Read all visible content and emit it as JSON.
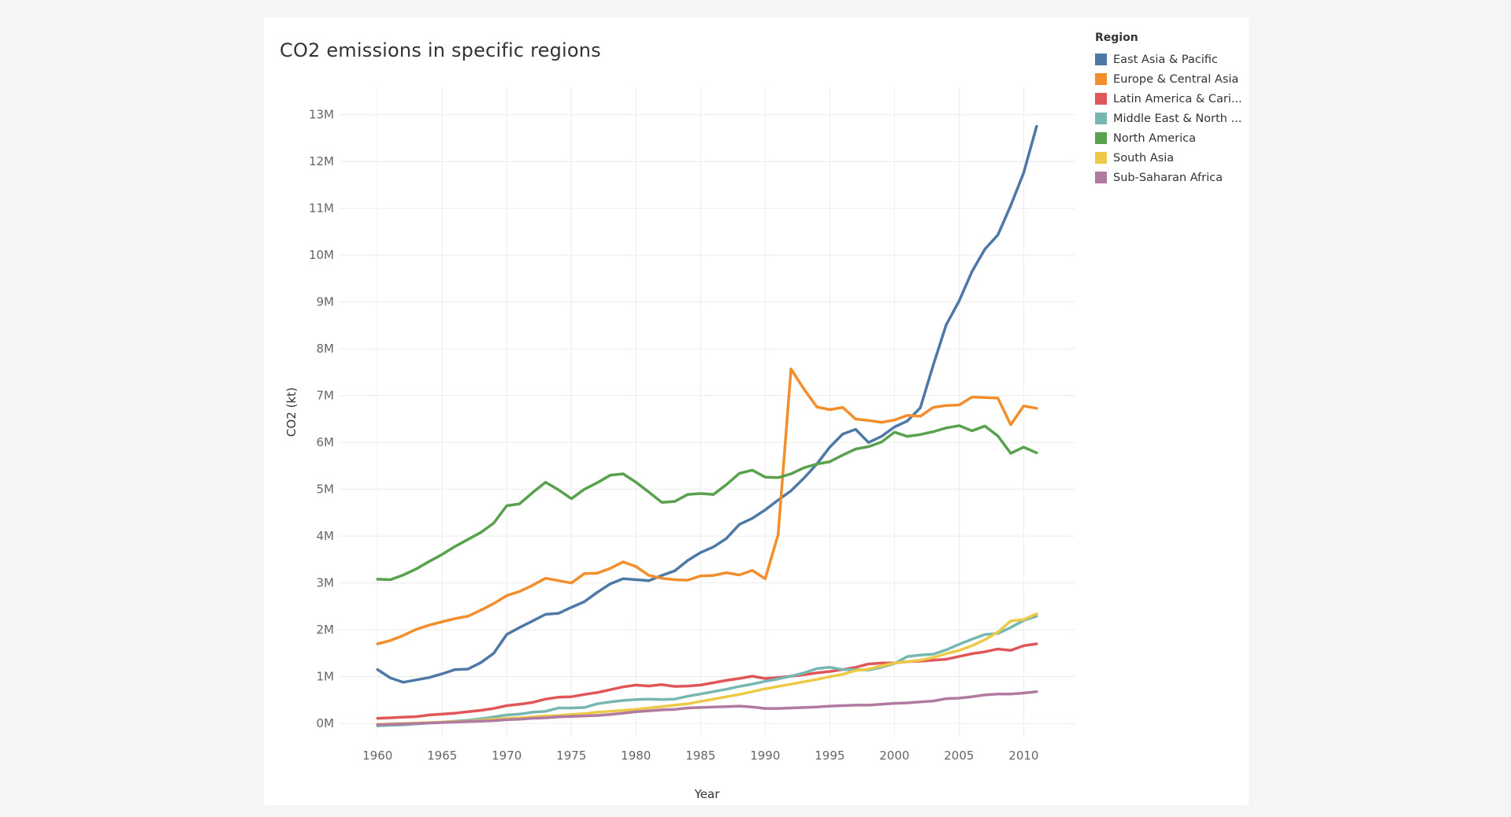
{
  "chart_data": {
    "type": "line",
    "title": "CO2 emissions in specific regions",
    "xlabel": "Year",
    "ylabel": "CO2 (kt)",
    "xlim": [
      1957,
      2014
    ],
    "ylim": [
      -300000,
      13600000
    ],
    "x_ticks": [
      1960,
      1965,
      1970,
      1975,
      1980,
      1985,
      1990,
      1995,
      2000,
      2005,
      2010
    ],
    "y_ticks": [
      {
        "value": 0,
        "label": "0M"
      },
      {
        "value": 1000000,
        "label": "1M"
      },
      {
        "value": 2000000,
        "label": "2M"
      },
      {
        "value": 3000000,
        "label": "3M"
      },
      {
        "value": 4000000,
        "label": "4M"
      },
      {
        "value": 5000000,
        "label": "5M"
      },
      {
        "value": 6000000,
        "label": "6M"
      },
      {
        "value": 7000000,
        "label": "7M"
      },
      {
        "value": 8000000,
        "label": "8M"
      },
      {
        "value": 9000000,
        "label": "9M"
      },
      {
        "value": 10000000,
        "label": "10M"
      },
      {
        "value": 11000000,
        "label": "11M"
      },
      {
        "value": 12000000,
        "label": "12M"
      },
      {
        "value": 13000000,
        "label": "13M"
      }
    ],
    "grid": true,
    "legend_title": "Region",
    "legend_position": "right",
    "x": [
      1960,
      1961,
      1962,
      1963,
      1964,
      1965,
      1966,
      1967,
      1968,
      1969,
      1970,
      1971,
      1972,
      1973,
      1974,
      1975,
      1976,
      1977,
      1978,
      1979,
      1980,
      1981,
      1982,
      1983,
      1984,
      1985,
      1986,
      1987,
      1988,
      1989,
      1990,
      1991,
      1992,
      1993,
      1994,
      1995,
      1996,
      1997,
      1998,
      1999,
      2000,
      2001,
      2002,
      2003,
      2004,
      2005,
      2006,
      2007,
      2008,
      2009,
      2010,
      2011
    ],
    "series": [
      {
        "name": "East Asia & Pacific",
        "label": "East Asia & Pacific",
        "color": "#4e79a7",
        "values": [
          1150000,
          970000,
          880000,
          930000,
          980000,
          1060000,
          1150000,
          1160000,
          1300000,
          1500000,
          1900000,
          2050000,
          2190000,
          2330000,
          2350000,
          2480000,
          2600000,
          2800000,
          2980000,
          3090000,
          3070000,
          3050000,
          3160000,
          3260000,
          3480000,
          3650000,
          3770000,
          3950000,
          4250000,
          4380000,
          4560000,
          4770000,
          4970000,
          5240000,
          5540000,
          5900000,
          6180000,
          6280000,
          6000000,
          6130000,
          6330000,
          6460000,
          6740000,
          7650000,
          8510000,
          9020000,
          9650000,
          10130000,
          10430000,
          11060000,
          11760000,
          12750000
        ]
      },
      {
        "name": "Europe & Central Asia",
        "label": "Europe & Central Asia",
        "color": "#f28e2b",
        "values": [
          1700000,
          1770000,
          1880000,
          2010000,
          2100000,
          2170000,
          2240000,
          2290000,
          2420000,
          2560000,
          2730000,
          2820000,
          2950000,
          3100000,
          3050000,
          3000000,
          3200000,
          3210000,
          3310000,
          3450000,
          3350000,
          3160000,
          3100000,
          3070000,
          3060000,
          3150000,
          3160000,
          3220000,
          3170000,
          3270000,
          3090000,
          4030000,
          7570000,
          7140000,
          6760000,
          6700000,
          6750000,
          6500000,
          6470000,
          6430000,
          6480000,
          6580000,
          6560000,
          6750000,
          6790000,
          6800000,
          6970000,
          6960000,
          6950000,
          6380000,
          6780000,
          6730000
        ]
      },
      {
        "name": "Latin America & Caribbean",
        "label": "Latin America & Cari...",
        "color": "#e15759",
        "values": [
          110000,
          120000,
          135000,
          145000,
          180000,
          200000,
          220000,
          250000,
          280000,
          320000,
          380000,
          410000,
          450000,
          520000,
          560000,
          570000,
          620000,
          660000,
          720000,
          780000,
          820000,
          800000,
          830000,
          790000,
          800000,
          820000,
          870000,
          920000,
          960000,
          1010000,
          960000,
          980000,
          1010000,
          1040000,
          1080000,
          1110000,
          1150000,
          1200000,
          1270000,
          1290000,
          1290000,
          1320000,
          1330000,
          1350000,
          1370000,
          1430000,
          1490000,
          1530000,
          1590000,
          1560000,
          1660000,
          1700000
        ]
      },
      {
        "name": "Middle East & North Africa",
        "label": "Middle East & North ...",
        "color": "#76b7b2",
        "values": [
          -50000,
          -40000,
          -30000,
          -10000,
          10000,
          30000,
          50000,
          70000,
          100000,
          140000,
          180000,
          200000,
          240000,
          260000,
          330000,
          330000,
          340000,
          420000,
          460000,
          490000,
          510000,
          520000,
          510000,
          520000,
          580000,
          630000,
          680000,
          730000,
          790000,
          840000,
          900000,
          950000,
          1010000,
          1080000,
          1170000,
          1200000,
          1150000,
          1150000,
          1140000,
          1200000,
          1280000,
          1430000,
          1460000,
          1480000,
          1570000,
          1690000,
          1800000,
          1900000,
          1920000,
          2050000,
          2200000,
          2290000
        ]
      },
      {
        "name": "North America",
        "label": "North America",
        "color": "#59a14f",
        "values": [
          3080000,
          3070000,
          3170000,
          3300000,
          3460000,
          3610000,
          3780000,
          3930000,
          4080000,
          4280000,
          4650000,
          4690000,
          4930000,
          5150000,
          4990000,
          4800000,
          5000000,
          5140000,
          5300000,
          5330000,
          5150000,
          4940000,
          4720000,
          4740000,
          4890000,
          4910000,
          4890000,
          5100000,
          5340000,
          5410000,
          5260000,
          5250000,
          5330000,
          5460000,
          5540000,
          5590000,
          5730000,
          5860000,
          5910000,
          6010000,
          6220000,
          6130000,
          6170000,
          6230000,
          6310000,
          6360000,
          6250000,
          6350000,
          6140000,
          5770000,
          5900000,
          5780000
        ]
      },
      {
        "name": "South Asia",
        "label": "South Asia",
        "color": "#edc948",
        "values": [
          -20000,
          -10000,
          0,
          10000,
          20000,
          30000,
          40000,
          50000,
          70000,
          90000,
          110000,
          120000,
          140000,
          160000,
          170000,
          190000,
          210000,
          240000,
          260000,
          280000,
          300000,
          330000,
          360000,
          390000,
          420000,
          470000,
          520000,
          570000,
          620000,
          680000,
          740000,
          790000,
          840000,
          890000,
          940000,
          1000000,
          1050000,
          1130000,
          1160000,
          1230000,
          1290000,
          1320000,
          1350000,
          1410000,
          1490000,
          1560000,
          1660000,
          1790000,
          1950000,
          2190000,
          2220000,
          2340000
        ]
      },
      {
        "name": "Sub-Saharan Africa",
        "label": "Sub-Saharan Africa",
        "color": "#b07aa1",
        "values": [
          -30000,
          -20000,
          -10000,
          0,
          10000,
          20000,
          30000,
          40000,
          50000,
          60000,
          80000,
          90000,
          110000,
          120000,
          140000,
          150000,
          160000,
          170000,
          190000,
          220000,
          250000,
          270000,
          290000,
          300000,
          330000,
          340000,
          350000,
          360000,
          370000,
          350000,
          320000,
          320000,
          330000,
          340000,
          350000,
          370000,
          380000,
          390000,
          390000,
          410000,
          430000,
          440000,
          460000,
          480000,
          530000,
          540000,
          570000,
          610000,
          630000,
          630000,
          650000,
          680000
        ]
      }
    ]
  }
}
